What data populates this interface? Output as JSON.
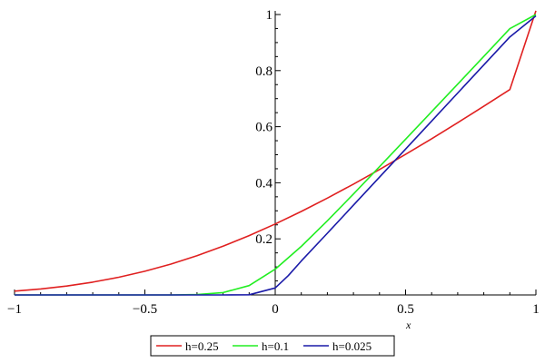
{
  "chart_data": {
    "type": "line",
    "title": "",
    "xlabel": "x",
    "ylabel": "",
    "xlim": [
      -1,
      1
    ],
    "ylim": [
      0,
      1
    ],
    "grid": false,
    "legend_position": "bottom-center",
    "x_ticks": [
      -1,
      -0.5,
      0,
      0.5,
      1
    ],
    "x_tick_labels": [
      "−1",
      "−0.5",
      "0",
      "0.5",
      "1"
    ],
    "y_ticks": [
      0.2,
      0.4,
      0.6,
      0.8,
      1
    ],
    "y_tick_labels": [
      "0.2",
      "0.4",
      "0.6",
      "0.8",
      "1"
    ],
    "series": [
      {
        "name": "h=0.25",
        "color": "#e02020",
        "x": [
          -1.0,
          -0.9,
          -0.8,
          -0.7,
          -0.6,
          -0.5,
          -0.4,
          -0.3,
          -0.2,
          -0.1,
          0.0,
          0.1,
          0.2,
          0.3,
          0.4,
          0.5,
          0.6,
          0.7,
          0.8,
          0.9,
          1.0
        ],
        "y": [
          0.0135,
          0.0212,
          0.0318,
          0.0457,
          0.0632,
          0.0846,
          0.1101,
          0.1397,
          0.1737,
          0.2116,
          0.253,
          0.2977,
          0.3452,
          0.3952,
          0.4473,
          0.5014,
          0.5571,
          0.6143,
          0.6727,
          0.7323,
          1.0134
        ]
      },
      {
        "name": "h=0.1",
        "color": "#22ee22",
        "x": [
          -1.0,
          -0.9,
          -0.8,
          -0.7,
          -0.6,
          -0.5,
          -0.4,
          -0.3,
          -0.2,
          -0.1,
          0.0,
          0.1,
          0.2,
          0.3,
          0.4,
          0.5,
          0.6,
          0.7,
          0.8,
          0.9,
          1.0
        ],
        "y": [
          0.0,
          0.0,
          0.0,
          0.0,
          0.0,
          0.0,
          0.0001,
          0.0012,
          0.0085,
          0.0333,
          0.0919,
          0.1733,
          0.2643,
          0.36,
          0.4573,
          0.5552,
          0.6534,
          0.7518,
          0.8505,
          0.9494,
          1.0
        ]
      },
      {
        "name": "h=0.025",
        "color": "#1a1aa8",
        "x": [
          -1.0,
          -0.9,
          -0.8,
          -0.7,
          -0.6,
          -0.5,
          -0.4,
          -0.3,
          -0.2,
          -0.1,
          0.0,
          0.05,
          0.1,
          0.2,
          0.3,
          0.4,
          0.5,
          0.6,
          0.7,
          0.8,
          0.9,
          1.0
        ],
        "y": [
          0.0,
          0.0,
          0.0,
          0.0,
          0.0,
          0.0,
          0.0,
          0.0,
          0.0,
          0.0005,
          0.025,
          0.069,
          0.121,
          0.22,
          0.32,
          0.42,
          0.52,
          0.62,
          0.72,
          0.82,
          0.92,
          0.995
        ]
      }
    ]
  }
}
